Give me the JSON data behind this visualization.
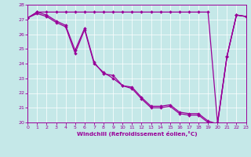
{
  "bg_color": "#c5e8e8",
  "line_color": "#990099",
  "xlabel": "Windchill (Refroidissement éolien,°C)",
  "xlim": [
    0,
    23
  ],
  "ylim": [
    20,
    28
  ],
  "xtick_vals": [
    0,
    1,
    2,
    3,
    4,
    5,
    6,
    7,
    8,
    9,
    10,
    11,
    12,
    13,
    14,
    15,
    16,
    17,
    18,
    19,
    20,
    21,
    22,
    23
  ],
  "ytick_vals": [
    20,
    21,
    22,
    23,
    24,
    25,
    26,
    27,
    28
  ],
  "flat_line": {
    "x": [
      0,
      1,
      2,
      3,
      4,
      5,
      6,
      7,
      8,
      9,
      10,
      11,
      12,
      13,
      14,
      15,
      16,
      17,
      18,
      19,
      20,
      21,
      22,
      23
    ],
    "y": [
      27.1,
      27.5,
      27.5,
      27.5,
      27.5,
      27.5,
      27.5,
      27.5,
      27.5,
      27.5,
      27.5,
      27.5,
      27.5,
      27.5,
      27.5,
      27.5,
      27.5,
      27.5,
      27.5,
      27.5,
      20.0,
      24.5,
      27.3,
      27.2
    ]
  },
  "desc_line1": {
    "x": [
      0,
      1,
      2,
      3,
      4,
      5,
      6,
      7,
      8,
      9,
      10,
      11,
      12,
      13,
      14,
      15,
      16,
      17,
      18,
      19,
      20,
      21,
      22,
      23
    ],
    "y": [
      27.1,
      27.5,
      27.3,
      26.9,
      26.6,
      24.9,
      26.4,
      24.1,
      23.3,
      23.2,
      22.5,
      22.4,
      21.7,
      21.1,
      21.1,
      21.2,
      20.7,
      20.6,
      20.6,
      20.1,
      19.9,
      24.5,
      27.3,
      27.2
    ]
  },
  "desc_line2": {
    "x": [
      0,
      1,
      2,
      3,
      4,
      5,
      6,
      7,
      8,
      9,
      10,
      11,
      12,
      13,
      14,
      15,
      16,
      17,
      18,
      19,
      20,
      21,
      22,
      23
    ],
    "y": [
      27.1,
      27.4,
      27.2,
      26.8,
      26.5,
      24.7,
      26.3,
      24.0,
      23.4,
      23.0,
      22.5,
      22.3,
      21.6,
      21.0,
      21.0,
      21.1,
      20.6,
      20.5,
      20.5,
      20.0,
      19.9,
      24.5,
      27.3,
      27.2
    ]
  },
  "figsize": [
    3.2,
    2.0
  ],
  "dpi": 100
}
